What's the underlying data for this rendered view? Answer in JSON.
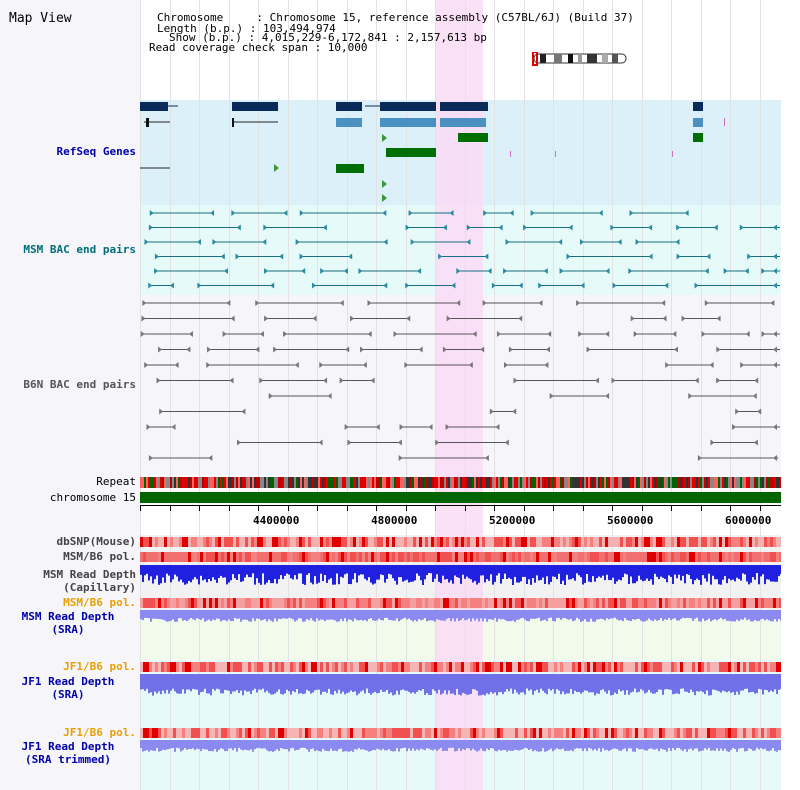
{
  "map_title": "Map View",
  "info": {
    "chromosome": "Chromosome     : Chromosome 15, reference assembly (C57BL/6J) (Build 37)",
    "length": "Length (b.p.) : 103,494,974",
    "show": "Show (b.p.) : 4,015,229-6,172,841 : 2,157,613 bp",
    "coverage": "Read coverage check span : 10,000"
  },
  "tracks": {
    "refseq": "RefSeq Genes",
    "msm_bac": "MSM BAC end pairs",
    "b6n_bac": "B6N BAC end pairs",
    "repeat": "Repeat",
    "chromosome": "chromosome 15",
    "dbsnp": "dbSNP(Mouse)",
    "msm_b6_pol_1": "MSM/B6 pol.",
    "msm_read_depth_cap": "MSM Read Depth",
    "msm_read_depth_cap_sub": "(Capillary)",
    "msm_b6_pol_2": "MSM/B6 pol.",
    "msm_read_depth_sra": "MSM Read Depth",
    "msm_read_depth_sra_sub": "(SRA)",
    "jf1_b6_pol_1": "JF1/B6 pol.",
    "jf1_read_depth_sra": "JF1 Read Depth",
    "jf1_read_depth_sra_sub": "(SRA)",
    "jf1_b6_pol_2": "JF1/B6 pol.",
    "jf1_read_depth_trim": "JF1 Read Depth",
    "jf1_read_depth_trim_sub": "(SRA trimmed)"
  },
  "axis": {
    "ticks": [
      "4400000",
      "4800000",
      "5200000",
      "5600000",
      "6000000"
    ]
  },
  "colors": {
    "refseq_bg": "#dcf0fa",
    "msm_bg": "#e6fafa",
    "highlight": "#fadcf5",
    "label_blue": "#0000aa",
    "label_teal": "#006e7a",
    "label_orange": "#e8a000",
    "chromosome_green": "#006400"
  }
}
